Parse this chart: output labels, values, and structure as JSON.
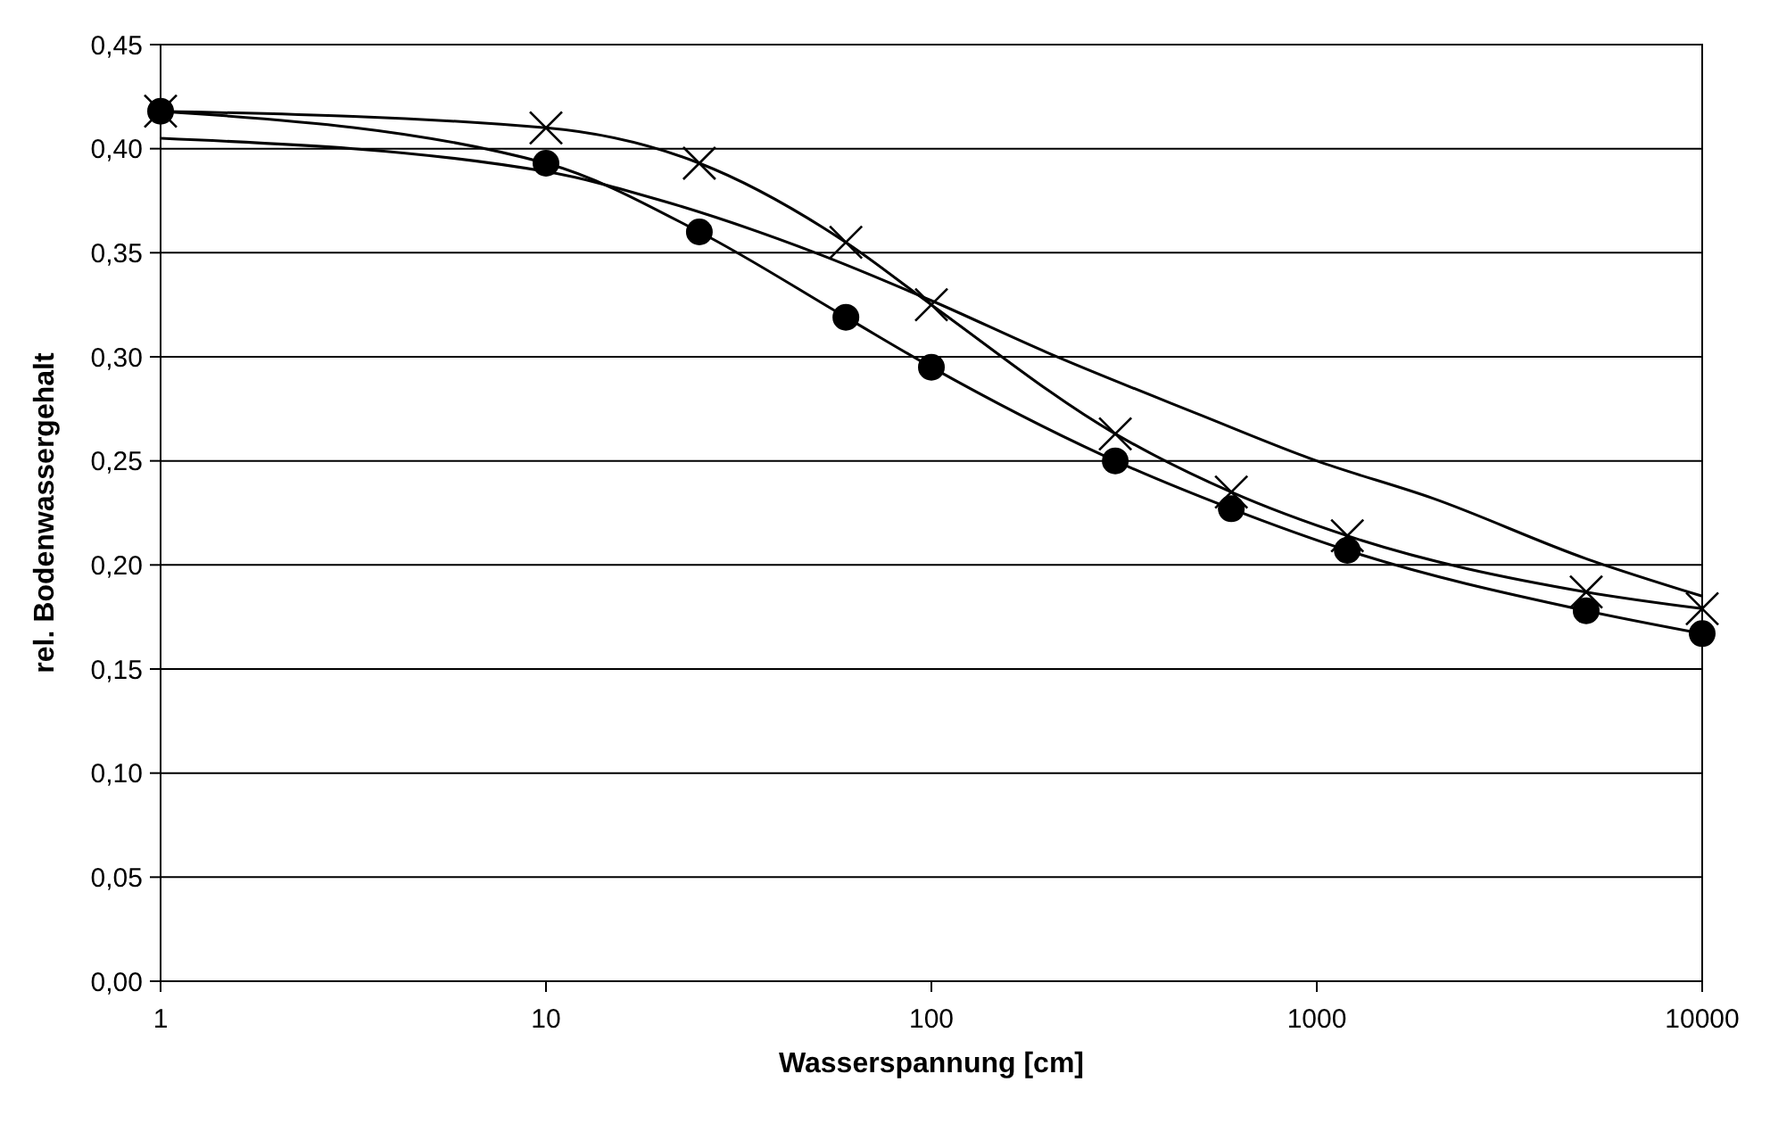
{
  "chart_data": {
    "type": "line",
    "xlabel": "Wasserspannung [cm]",
    "ylabel": "rel. Bodenwassergehalt",
    "log": "x",
    "grid": "y",
    "line_style": "solid",
    "xlim": [
      1,
      10000
    ],
    "xticks": [
      1,
      10,
      100,
      1000,
      10000
    ],
    "ylim": [
      0,
      0.45
    ],
    "yticks": [
      {
        "value": 0,
        "label": "0,00"
      },
      {
        "value": 0.05,
        "label": "0,05"
      },
      {
        "value": 0.1,
        "label": "0,10"
      },
      {
        "value": 0.15,
        "label": "0,15"
      },
      {
        "value": 0.2,
        "label": "0,20"
      },
      {
        "value": 0.25,
        "label": "0,25"
      },
      {
        "value": 0.3,
        "label": "0,30"
      },
      {
        "value": 0.35,
        "label": "0,35"
      },
      {
        "value": 0.4,
        "label": "0,40"
      },
      {
        "value": 0.45,
        "label": "0,45"
      }
    ],
    "series": [
      {
        "color": "#000000",
        "marker": "none",
        "x": [
          1,
          10,
          20,
          50,
          100,
          200,
          500,
          1000,
          2000,
          5000,
          10000
        ],
        "values": [
          0.405,
          0.389,
          0.375,
          0.35,
          0.327,
          0.302,
          0.272,
          0.25,
          0.232,
          0.203,
          0.185
        ]
      },
      {
        "color": "#000000",
        "marker": "circle",
        "x": [
          1,
          10,
          25,
          60,
          100,
          300,
          600,
          1200,
          5000,
          10000
        ],
        "values": [
          0.418,
          0.393,
          0.36,
          0.319,
          0.295,
          0.25,
          0.227,
          0.207,
          0.178,
          0.167
        ]
      },
      {
        "color": "#000000",
        "marker": "cross",
        "x": [
          1,
          10,
          25,
          60,
          100,
          300,
          600,
          1200,
          5000,
          10000
        ],
        "values": [
          0.418,
          0.41,
          0.393,
          0.355,
          0.325,
          0.263,
          0.235,
          0.214,
          0.187,
          0.179
        ]
      }
    ]
  }
}
